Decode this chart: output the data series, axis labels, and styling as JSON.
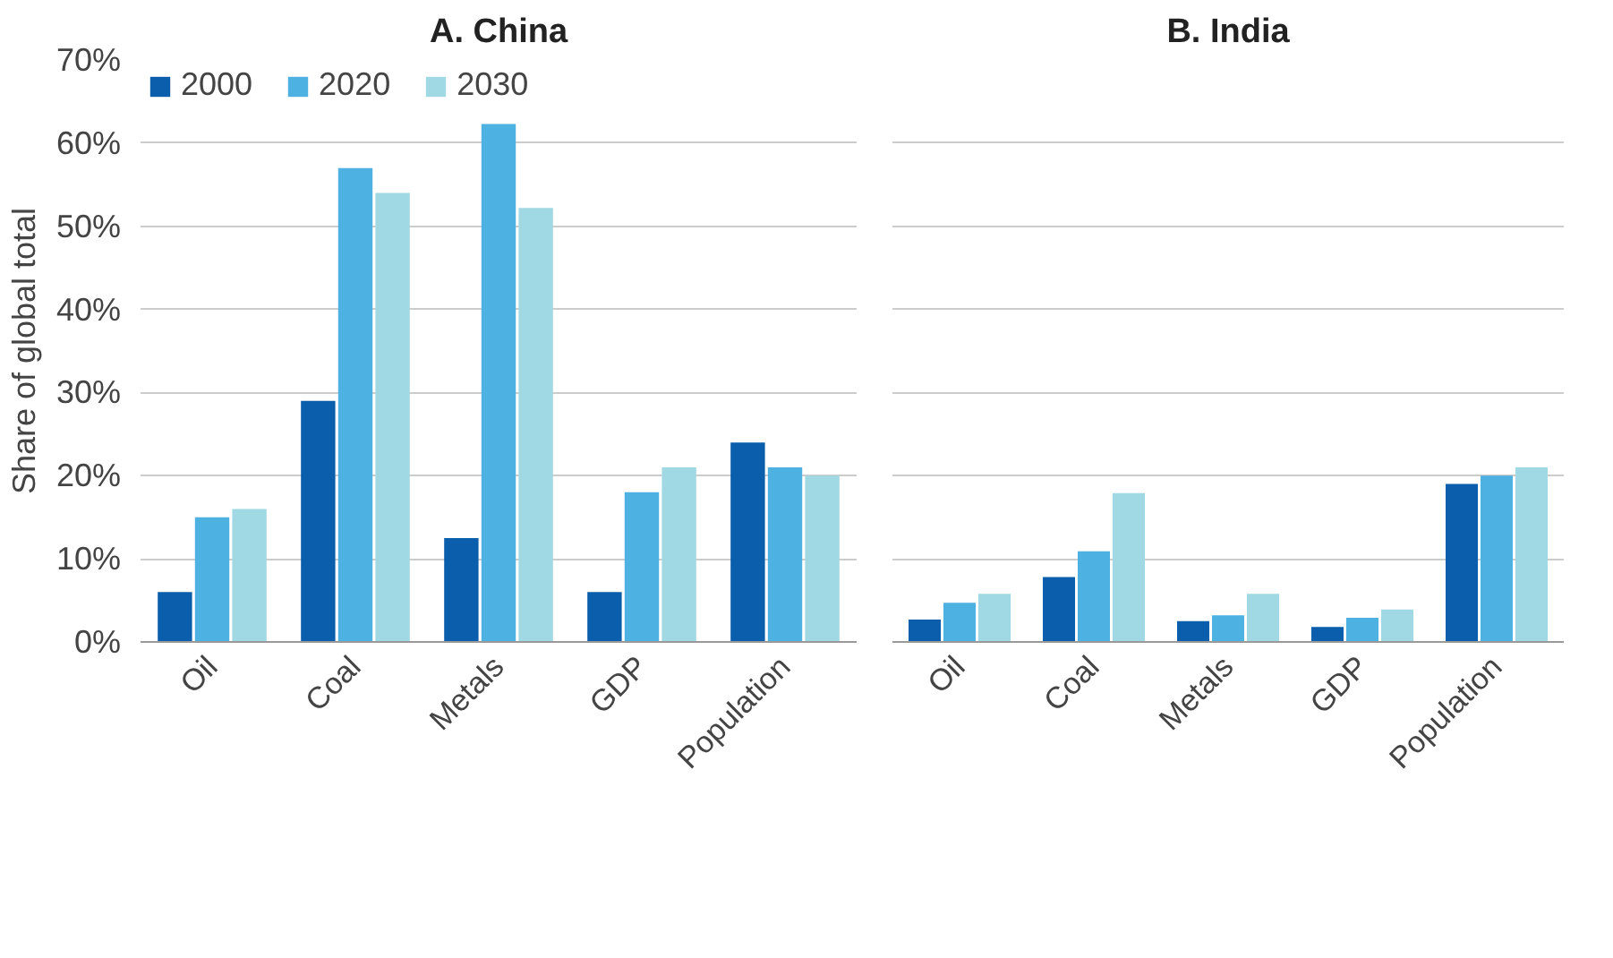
{
  "chart_data": [
    {
      "type": "bar",
      "title": "A. China",
      "ylabel": "Share of global total",
      "categories": [
        "Oil",
        "Coal",
        "Metals",
        "GDP",
        "Population"
      ],
      "series": [
        {
          "name": "2000",
          "color": "#0b5eab",
          "values": [
            6,
            29,
            12.5,
            6,
            24
          ]
        },
        {
          "name": "2020",
          "color": "#4db1e2",
          "values": [
            15,
            57,
            62.3,
            18,
            21
          ]
        },
        {
          "name": "2030",
          "color": "#a0d9e3",
          "values": [
            16,
            54,
            52.2,
            21,
            20
          ]
        }
      ],
      "ylim": [
        0,
        70
      ],
      "yticks": [
        {
          "value": 0,
          "label": "0%"
        },
        {
          "value": 10,
          "label": "10%"
        },
        {
          "value": 20,
          "label": "20%"
        },
        {
          "value": 30,
          "label": "30%"
        },
        {
          "value": 40,
          "label": "40%"
        },
        {
          "value": 50,
          "label": "50%"
        },
        {
          "value": 60,
          "label": "60%"
        },
        {
          "value": 70,
          "label": "70%"
        }
      ],
      "grid": "y",
      "legend": "top left"
    },
    {
      "type": "bar",
      "title": "B. India",
      "categories": [
        "Oil",
        "Coal",
        "Metals",
        "GDP",
        "Population"
      ],
      "series": [
        {
          "color": "#0b5eab",
          "values": [
            2.7,
            7.8,
            2.5,
            1.8,
            19
          ]
        },
        {
          "color": "#4db1e2",
          "values": [
            4.7,
            10.9,
            3.2,
            2.9,
            20
          ]
        },
        {
          "color": "#a0d9e3",
          "values": [
            5.8,
            17.9,
            5.8,
            3.9,
            21
          ]
        }
      ],
      "ylim": [
        0,
        70
      ],
      "yticks": [
        {
          "value": 0,
          "label": null
        },
        {
          "value": 10,
          "label": null
        },
        {
          "value": 20,
          "label": null
        },
        {
          "value": 30,
          "label": null
        },
        {
          "value": 40,
          "label": null
        },
        {
          "value": 50,
          "label": null
        },
        {
          "value": 60,
          "label": null
        },
        {
          "value": 70,
          "label": null
        }
      ],
      "grid": "y",
      "tick_labels": "x"
    }
  ]
}
